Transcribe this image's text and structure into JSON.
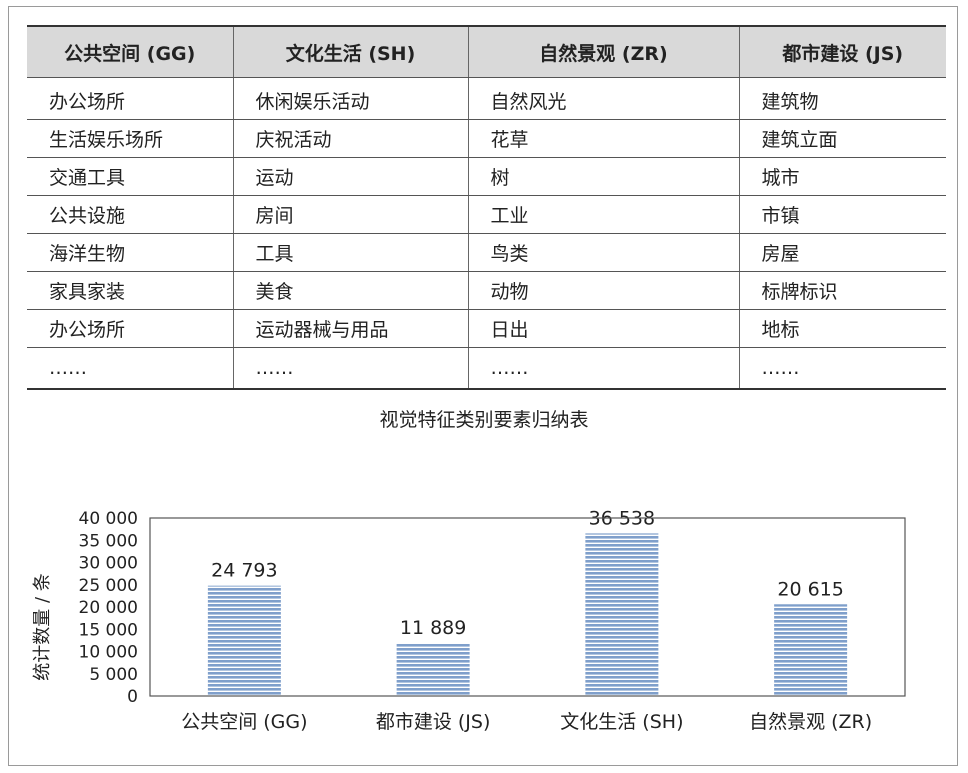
{
  "table": {
    "headers": [
      "公共空间 (GG)",
      "文化生活 (SH)",
      "自然景观 (ZR)",
      "都市建设 (JS)"
    ],
    "rows": [
      [
        "办公场所",
        "休闲娱乐活动",
        "自然风光",
        "建筑物"
      ],
      [
        "生活娱乐场所",
        "庆祝活动",
        "花草",
        "建筑立面"
      ],
      [
        "交通工具",
        "运动",
        "树",
        "城市"
      ],
      [
        "公共设施",
        "房间",
        "工业",
        "市镇"
      ],
      [
        "海洋生物",
        "工具",
        "鸟类",
        "房屋"
      ],
      [
        "家具家装",
        "美食",
        "动物",
        "标牌标识"
      ],
      [
        "办公场所",
        "运动器械与用品",
        "日出",
        "地标"
      ],
      [
        "……",
        "……",
        "……",
        "……"
      ]
    ]
  },
  "caption": "视觉特征类别要素归纳表",
  "chart_data": {
    "type": "bar",
    "categories": [
      "公共空间 (GG)",
      "都市建设 (JS)",
      "文化生活 (SH)",
      "自然景观 (ZR)"
    ],
    "values": [
      24793,
      11889,
      36538,
      20615
    ],
    "data_labels": [
      "24 793",
      "11 889",
      "36 538",
      "20 615"
    ],
    "ylabel": "统计数量 / 条",
    "ylim": [
      0,
      40000
    ],
    "yticks": [
      0,
      5000,
      10000,
      15000,
      20000,
      25000,
      30000,
      35000,
      40000
    ],
    "ytick_labels": [
      "0",
      "5 000",
      "10 000",
      "15 000",
      "20 000",
      "25 000",
      "30 000",
      "35 000",
      "40 000"
    ],
    "bar_color": "#7f9fcb",
    "stripe_color": "#ffffff",
    "grid": false,
    "legend": "none"
  }
}
